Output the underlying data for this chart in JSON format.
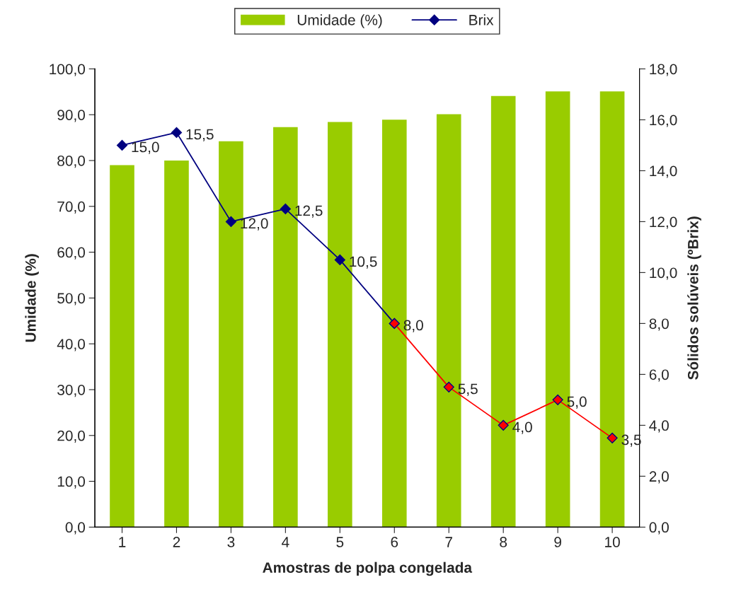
{
  "chart_data": {
    "type": "bar",
    "xlabel": "Amostras de polpa congelada",
    "ylabel": "Umidade (%)",
    "y2label": "Sólidos solúveis (ºBrix)",
    "categories": [
      "1",
      "2",
      "3",
      "4",
      "5",
      "6",
      "7",
      "8",
      "9",
      "10"
    ],
    "series": [
      {
        "name": "Umidade (%)",
        "color": "#99cc00",
        "values": [
          79.0,
          80.0,
          84.2,
          87.3,
          88.4,
          88.9,
          90.1,
          94.1,
          95.1,
          95.1
        ]
      },
      {
        "name": "Brix",
        "type": "line",
        "axis": "y2",
        "color": "#000080",
        "marker": "diamond",
        "values": [
          15.0,
          15.5,
          12.0,
          12.5,
          10.5,
          8.0,
          null,
          null,
          null,
          null
        ],
        "value_labels": [
          "15,0",
          "15,5",
          "12,0",
          "12,5",
          "10,5",
          "8,0",
          null,
          null,
          null,
          null
        ]
      },
      {
        "type": "line",
        "axis": "y2",
        "color": "#ff0000",
        "marker": "diamond",
        "values": [
          null,
          null,
          null,
          null,
          null,
          8.0,
          5.5,
          4.0,
          5.0,
          3.5
        ],
        "value_labels": [
          null,
          null,
          null,
          null,
          null,
          null,
          "5,5",
          "4,0",
          "5,0",
          "3,5"
        ]
      }
    ],
    "ylim": [
      0,
      100
    ],
    "yticks": [
      {
        "value": 0,
        "label": "0,0"
      },
      {
        "value": 10,
        "label": "10,0"
      },
      {
        "value": 20,
        "label": "20,0"
      },
      {
        "value": 30,
        "label": "30,0"
      },
      {
        "value": 40,
        "label": "40,0"
      },
      {
        "value": 50,
        "label": "50,0"
      },
      {
        "value": 60,
        "label": "60,0"
      },
      {
        "value": 70,
        "label": "70,0"
      },
      {
        "value": 80,
        "label": "80,0"
      },
      {
        "value": 90,
        "label": "90,0"
      },
      {
        "value": 100,
        "label": "100,0"
      }
    ],
    "y2lim": [
      0,
      18
    ],
    "y2ticks": [
      {
        "value": 0,
        "label": "0,0"
      },
      {
        "value": 2,
        "label": "2,0"
      },
      {
        "value": 4,
        "label": "4,0"
      },
      {
        "value": 6,
        "label": "6,0"
      },
      {
        "value": 8,
        "label": "8,0"
      },
      {
        "value": 10,
        "label": "10,0"
      },
      {
        "value": 12,
        "label": "12,0"
      },
      {
        "value": 14,
        "label": "14,0"
      },
      {
        "value": 16,
        "label": "16,0"
      },
      {
        "value": 18,
        "label": "18,0"
      }
    ],
    "grid": false,
    "legend": "top"
  }
}
